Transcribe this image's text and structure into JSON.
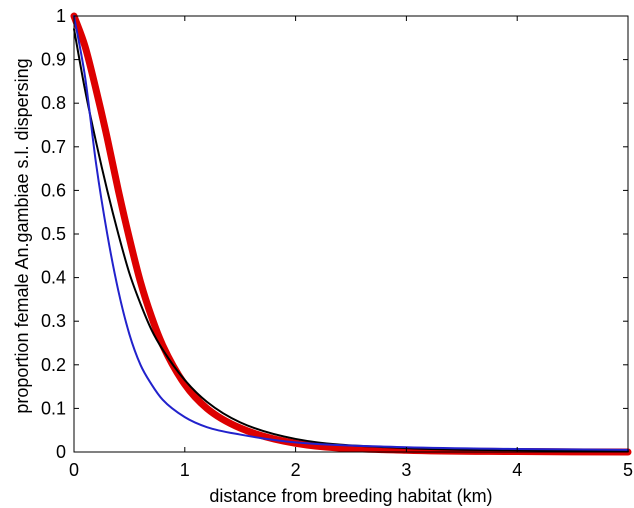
{
  "chart_data": {
    "type": "line",
    "title": "",
    "xlabel": "distance from breeding habitat (km)",
    "ylabel": "proportion female An.gambiae s.l. dispersing",
    "xlim": [
      0,
      5
    ],
    "ylim": [
      0,
      1
    ],
    "xticks": [
      "0",
      "1",
      "2",
      "3",
      "4",
      "5"
    ],
    "yticks": [
      "0",
      "0.1",
      "0.2",
      "0.3",
      "0.4",
      "0.5",
      "0.6",
      "0.7",
      "0.8",
      "0.9",
      "1"
    ],
    "grid": false,
    "legend": "none",
    "x": [
      0,
      0.1,
      0.2,
      0.3,
      0.4,
      0.5,
      0.6,
      0.7,
      0.8,
      1.0,
      1.2,
      1.5,
      2.0,
      3.0,
      4.0,
      5.0
    ],
    "series": [
      {
        "color": "#dd0000",
        "values": [
          1.0,
          0.93,
          0.83,
          0.72,
          0.6,
          0.49,
          0.39,
          0.31,
          0.245,
          0.155,
          0.1,
          0.055,
          0.02,
          0.004,
          0.001,
          0.0
        ]
      },
      {
        "color": "#000000",
        "values": [
          0.97,
          0.83,
          0.71,
          0.6,
          0.5,
          0.41,
          0.34,
          0.28,
          0.235,
          0.165,
          0.115,
          0.068,
          0.03,
          0.009,
          0.004,
          0.002
        ]
      },
      {
        "color": "#2222cc",
        "values": [
          1.0,
          0.86,
          0.66,
          0.5,
          0.37,
          0.27,
          0.2,
          0.155,
          0.12,
          0.08,
          0.057,
          0.04,
          0.022,
          0.011,
          0.007,
          0.005
        ]
      }
    ]
  }
}
